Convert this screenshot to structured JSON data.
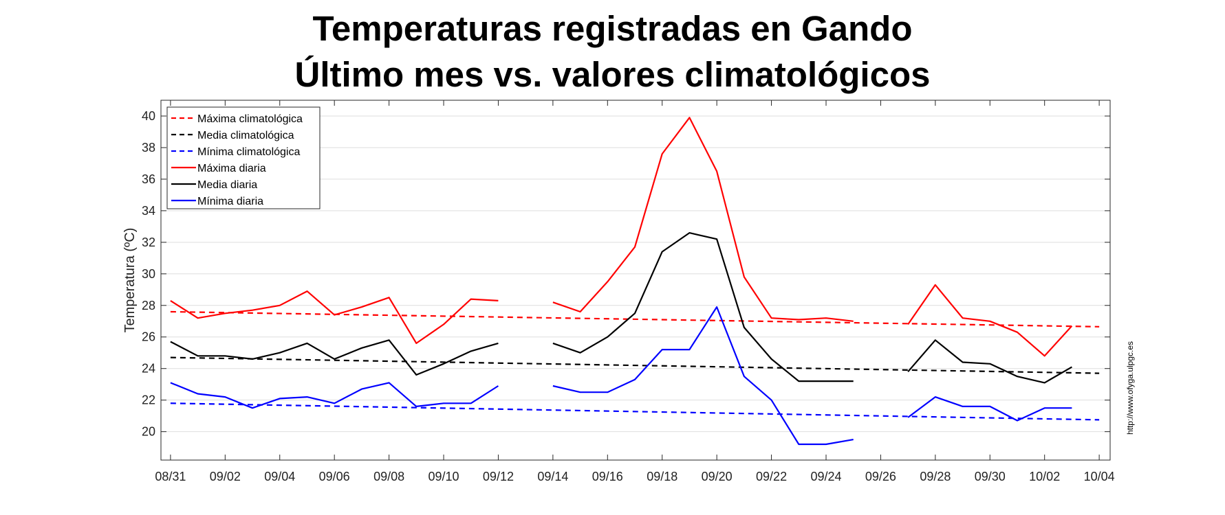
{
  "chart_data": {
    "type": "line",
    "title_line1": "Temperaturas registradas en Gando",
    "title_line2": "Último mes vs. valores climatológicos",
    "xlabel": "",
    "ylabel": "Temperatura (ºC)",
    "ylim": [
      18.2,
      41
    ],
    "yticks": [
      20,
      22,
      24,
      26,
      28,
      30,
      32,
      34,
      36,
      38,
      40
    ],
    "xlim": [
      -0.35,
      34.4
    ],
    "xtick_positions": [
      0,
      2,
      4,
      6,
      8,
      10,
      12,
      14,
      16,
      18,
      20,
      22,
      24,
      26,
      28,
      30,
      32,
      34
    ],
    "xtick_labels": [
      "08/31",
      "09/02",
      "09/04",
      "09/06",
      "09/08",
      "09/10",
      "09/12",
      "09/14",
      "09/16",
      "09/18",
      "09/20",
      "09/22",
      "09/24",
      "09/26",
      "09/28",
      "09/30",
      "10/02",
      "10/04"
    ],
    "grid": true,
    "legend_position": "top-left",
    "x_day_index": [
      0,
      1,
      2,
      3,
      4,
      5,
      6,
      7,
      8,
      9,
      10,
      11,
      12,
      13,
      14,
      15,
      16,
      17,
      18,
      19,
      20,
      21,
      22,
      23,
      24,
      25,
      26,
      27,
      28,
      29,
      30,
      31,
      32,
      33
    ],
    "series": [
      {
        "name": "Máxima climatológica",
        "color": "#ff0000",
        "style": "dashed",
        "start": 27.6,
        "end": 26.65
      },
      {
        "name": "Media climatológica",
        "color": "#000000",
        "style": "dashed",
        "start": 24.7,
        "end": 23.7
      },
      {
        "name": "Mínima climatológica",
        "color": "#0000ff",
        "style": "dashed",
        "start": 21.8,
        "end": 20.75
      },
      {
        "name": "Máxima diaria",
        "color": "#ff0000",
        "style": "solid",
        "values": [
          28.3,
          27.2,
          27.5,
          27.7,
          28.0,
          28.9,
          27.4,
          27.9,
          28.5,
          25.6,
          26.8,
          28.4,
          28.3,
          null,
          28.2,
          27.6,
          29.5,
          31.7,
          37.6,
          39.9,
          36.5,
          29.8,
          27.2,
          27.1,
          27.2,
          27.0,
          null,
          26.8,
          29.3,
          27.2,
          27.0,
          26.3,
          24.8,
          26.7
        ]
      },
      {
        "name": "Media diaria",
        "color": "#000000",
        "style": "solid",
        "values": [
          25.7,
          24.8,
          24.8,
          24.6,
          25.0,
          25.6,
          24.6,
          25.3,
          25.8,
          23.6,
          24.3,
          25.1,
          25.6,
          null,
          25.6,
          25.0,
          26.0,
          27.5,
          31.4,
          32.6,
          32.2,
          26.6,
          24.6,
          23.2,
          23.2,
          23.2,
          null,
          23.8,
          25.8,
          24.4,
          24.3,
          23.5,
          23.1,
          24.1
        ]
      },
      {
        "name": "Mínima diaria",
        "color": "#0000ff",
        "style": "solid",
        "values": [
          23.1,
          22.4,
          22.2,
          21.5,
          22.1,
          22.2,
          21.8,
          22.7,
          23.1,
          21.6,
          21.8,
          21.8,
          22.9,
          null,
          22.9,
          22.5,
          22.5,
          23.3,
          25.2,
          25.2,
          27.9,
          23.5,
          22.0,
          19.2,
          19.2,
          19.5,
          null,
          20.9,
          22.2,
          21.6,
          21.6,
          20.7,
          21.5,
          21.5
        ]
      }
    ],
    "side_note": "http://www.ofyga.ulpgc.es"
  }
}
